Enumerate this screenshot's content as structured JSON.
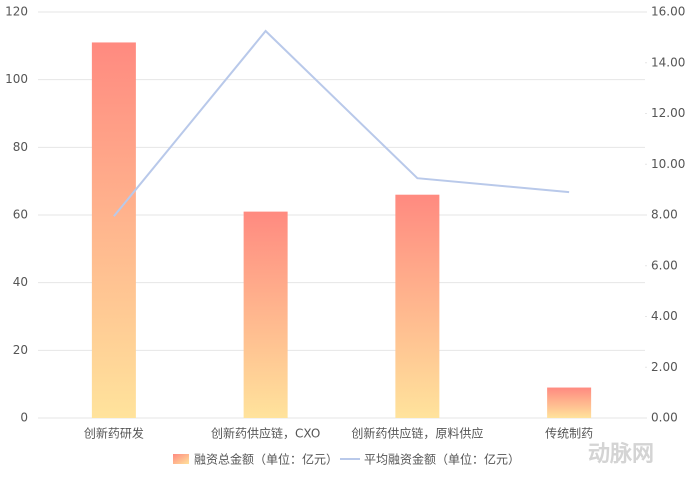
{
  "chart_data": {
    "type": "bar_line",
    "categories": [
      "创新药研发",
      "创新药供应链，CXO",
      "创新药供应链，原料供应",
      "传统制药"
    ],
    "series": [
      {
        "name": "融资总金额（单位：亿元）",
        "type": "bar",
        "color": [
          "#ff8a80",
          "#ffe39c"
        ],
        "values": [
          111,
          61,
          66,
          9
        ]
      },
      {
        "name": "平均融资金额（单位：亿元）",
        "type": "line",
        "axis": "y2",
        "color": "#b9c9ea",
        "values": [
          7.95,
          15.25,
          9.45,
          8.9
        ]
      }
    ],
    "ylim": [
      0,
      120
    ],
    "yticks": [
      0,
      20,
      40,
      60,
      80,
      100,
      120
    ],
    "y2lim": [
      0,
      16
    ],
    "y2ticks": [
      {
        "value": 0,
        "label": "0.00"
      },
      {
        "value": 2,
        "label": "2.00"
      },
      {
        "value": 4,
        "label": "4.00"
      },
      {
        "value": 6,
        "label": "6.00"
      },
      {
        "value": 8,
        "label": "8.00"
      },
      {
        "value": 10,
        "label": "10.00"
      },
      {
        "value": 12,
        "label": "12.00"
      },
      {
        "value": 14,
        "label": "14.00"
      },
      {
        "value": 16,
        "label": "16.00"
      }
    ],
    "grid": true,
    "watermark": "动脉网"
  }
}
